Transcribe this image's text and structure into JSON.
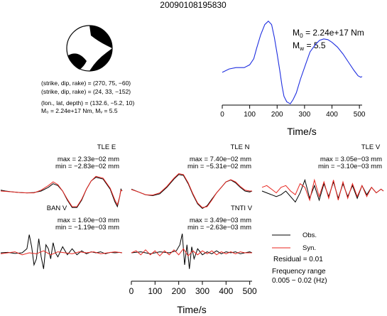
{
  "event": {
    "id": "20090108195830",
    "params": [
      "(strike, dip, rake) = (270, 75, −60)",
      "(strike, dip, rake) = (24, 33, −152)",
      "(lon., lat, depth) = (132.6, −5.2, 10)",
      "M₀ = 2.24e+17 Nm, Mᵥ = 5.5"
    ]
  },
  "stf": {
    "m0_label": "M",
    "m0_sub": "0",
    "m0_value": " = 2.24e+17 Nm",
    "mw_label": "M",
    "mw_sub": "w",
    "mw_value": " = 5.5",
    "xlabel": "Time/s",
    "xticks": [
      "0",
      "100",
      "200",
      "300",
      "400",
      "500"
    ]
  },
  "legend": {
    "obs": "Obs.",
    "syn": "Syn.",
    "residual": "Residual = 0.01",
    "freq_title": "Frequency range",
    "freq_range": "0.005 − 0.02 (Hz)"
  },
  "colors": {
    "observed": "#000000",
    "synthetic": "#e8251f",
    "stf": "#1f2fe0"
  },
  "chart_data": [
    {
      "type": "line",
      "panel": "source-time-function",
      "xlabel": "Time/s",
      "xlim": [
        0,
        510
      ],
      "ylim": [
        -0.25,
        1.05
      ],
      "series": [
        {
          "color": "#1f2fe0",
          "x": [
            0,
            25,
            50,
            80,
            100,
            115,
            125,
            140,
            155,
            168,
            180,
            190,
            200,
            210,
            218,
            225,
            235,
            248,
            258,
            270,
            285,
            305,
            320,
            340,
            355,
            370,
            385,
            400,
            420,
            440,
            460,
            480,
            495,
            505,
            510
          ],
          "y": [
            0.25,
            0.3,
            0.32,
            0.32,
            0.36,
            0.45,
            0.6,
            0.8,
            0.95,
            1.0,
            0.95,
            0.76,
            0.52,
            0.27,
            0.05,
            -0.1,
            -0.18,
            -0.21,
            -0.15,
            -0.05,
            0.15,
            0.38,
            0.55,
            0.66,
            0.72,
            0.74,
            0.73,
            0.69,
            0.62,
            0.52,
            0.4,
            0.28,
            0.2,
            0.18,
            0.19
          ]
        }
      ]
    },
    {
      "type": "line",
      "panel": "TLE E",
      "title": "TLE E",
      "max": "max = 2.33e−02 mm",
      "min": "min = −2.83e−02 mm",
      "xlim": [
        0,
        510
      ],
      "ylim": [
        -1.2,
        1.2
      ],
      "series": [
        {
          "name": "Obs.",
          "x": [
            0,
            20,
            50,
            80,
            110,
            140,
            170,
            200,
            220,
            240,
            260,
            280,
            300,
            320,
            340,
            360,
            380,
            400,
            430,
            460,
            480,
            490,
            500,
            505,
            510
          ],
          "y": [
            0.05,
            0.0,
            -0.05,
            -0.08,
            -0.1,
            -0.08,
            0.0,
            0.2,
            0.4,
            0.3,
            0.0,
            -0.5,
            -0.9,
            -0.9,
            -0.5,
            0.1,
            0.55,
            0.75,
            0.65,
            0.1,
            -0.6,
            -0.85,
            -0.3,
            0.1,
            0.0
          ]
        },
        {
          "name": "Syn.",
          "x": [
            0,
            20,
            50,
            80,
            110,
            140,
            170,
            200,
            220,
            240,
            260,
            280,
            300,
            320,
            340,
            360,
            380,
            400,
            430,
            460,
            480,
            490,
            500,
            505,
            510
          ],
          "y": [
            0.0,
            -0.02,
            -0.05,
            -0.08,
            -0.1,
            -0.1,
            0.05,
            0.3,
            0.5,
            0.35,
            0.0,
            -0.45,
            -0.85,
            -0.85,
            -0.45,
            0.1,
            0.55,
            0.8,
            0.7,
            0.15,
            -0.5,
            -0.75,
            -0.3,
            0.05,
            0.0
          ]
        }
      ]
    },
    {
      "type": "line",
      "panel": "TLE N",
      "title": "TLE N",
      "max": "max = 7.40e−02 mm",
      "min": "min = −5.31e−02 mm",
      "xlim": [
        0,
        510
      ],
      "ylim": [
        -1.2,
        1.2
      ],
      "series": [
        {
          "name": "Obs.",
          "x": [
            0,
            30,
            60,
            90,
            120,
            150,
            180,
            200,
            220,
            240,
            260,
            280,
            300,
            320,
            340,
            360,
            380,
            400,
            420,
            440,
            460,
            480,
            500,
            510
          ],
          "y": [
            0.1,
            -0.05,
            -0.2,
            -0.25,
            -0.15,
            0.2,
            0.65,
            0.9,
            0.85,
            0.4,
            -0.2,
            -0.7,
            -0.95,
            -0.8,
            -0.45,
            -0.1,
            0.2,
            0.5,
            0.6,
            0.45,
            0.2,
            0.0,
            -0.05,
            0.0
          ]
        },
        {
          "name": "Syn.",
          "x": [
            0,
            30,
            60,
            90,
            120,
            150,
            180,
            200,
            220,
            240,
            260,
            280,
            300,
            320,
            340,
            360,
            380,
            400,
            420,
            440,
            460,
            480,
            500,
            510
          ],
          "y": [
            0.08,
            -0.05,
            -0.2,
            -0.22,
            -0.1,
            0.25,
            0.7,
            0.95,
            0.9,
            0.45,
            -0.15,
            -0.65,
            -0.9,
            -0.85,
            -0.5,
            -0.1,
            0.2,
            0.5,
            0.62,
            0.5,
            0.25,
            0.05,
            0.0,
            0.0
          ]
        }
      ]
    },
    {
      "type": "line",
      "panel": "TLE V",
      "title": "TLE V",
      "max": "max = 3.05e−03 mm",
      "min": "min = −3.10e−03 mm",
      "xlim": [
        0,
        510
      ],
      "ylim": [
        -1.2,
        1.2
      ],
      "series": [
        {
          "name": "Obs.",
          "x": [
            0,
            20,
            40,
            60,
            80,
            100,
            120,
            140,
            160,
            180,
            200,
            220,
            240,
            260,
            280,
            300,
            320,
            340,
            360,
            380,
            400,
            420,
            440,
            460,
            480,
            500,
            510
          ],
          "y": [
            0.0,
            -0.1,
            -0.2,
            -0.3,
            -0.2,
            0.0,
            -0.3,
            -0.6,
            -0.1,
            0.6,
            -0.4,
            0.3,
            -0.5,
            0.4,
            -0.3,
            0.5,
            -0.4,
            0.4,
            -0.3,
            0.3,
            -0.4,
            0.3,
            -0.2,
            0.2,
            -0.1,
            0.1,
            0.0
          ]
        },
        {
          "name": "Syn.",
          "x": [
            0,
            20,
            40,
            60,
            80,
            100,
            120,
            140,
            160,
            180,
            200,
            220,
            240,
            260,
            280,
            300,
            320,
            340,
            360,
            380,
            400,
            420,
            440,
            460,
            480,
            500,
            510
          ],
          "y": [
            0.2,
            0.3,
            0.1,
            -0.1,
            0.2,
            0.3,
            0.0,
            -0.2,
            0.4,
            0.2,
            -0.5,
            0.6,
            -0.3,
            0.5,
            -0.4,
            0.6,
            -0.5,
            0.5,
            -0.4,
            0.4,
            -0.3,
            0.3,
            -0.3,
            0.2,
            -0.1,
            0.1,
            0.0
          ]
        }
      ]
    },
    {
      "type": "line",
      "panel": "BAN V",
      "title": "BAN V",
      "max": "max = 1.60e−03 mm",
      "min": "min = −1.19e−03 mm",
      "xlim": [
        0,
        510
      ],
      "ylim": [
        -1.2,
        1.2
      ],
      "series": [
        {
          "name": "Obs.",
          "x": [
            0,
            30,
            60,
            90,
            110,
            120,
            130,
            140,
            150,
            160,
            170,
            180,
            190,
            200,
            210,
            220,
            230,
            240,
            260,
            280,
            300,
            320,
            340,
            360,
            380,
            400,
            420,
            440,
            460,
            480,
            500,
            510
          ],
          "y": [
            0.0,
            0.02,
            -0.03,
            0.0,
            0.2,
            0.9,
            0.3,
            -0.6,
            -0.3,
            0.7,
            -0.2,
            -0.8,
            0.4,
            0.2,
            -0.3,
            0.5,
            0.0,
            -0.2,
            0.3,
            -0.1,
            0.2,
            -0.1,
            0.1,
            -0.05,
            0.05,
            0.0,
            0.05,
            -0.05,
            0.02,
            0.0,
            0.02,
            0.0
          ]
        },
        {
          "name": "Syn.",
          "x": [
            0,
            30,
            60,
            90,
            120,
            150,
            180,
            210,
            240,
            270,
            300,
            330,
            360,
            390,
            420,
            450,
            480,
            510
          ],
          "y": [
            -0.05,
            0.0,
            0.05,
            -0.1,
            0.0,
            -0.05,
            0.1,
            -0.1,
            0.05,
            0.0,
            -0.05,
            0.05,
            0.0,
            0.05,
            -0.05,
            0.0,
            0.05,
            0.0
          ]
        }
      ]
    },
    {
      "type": "line",
      "panel": "TNTI V",
      "title": "TNTI V",
      "max": "max = 3.49e−03 mm",
      "min": "min = −2.63e−03 mm",
      "xlabel": "Time/s",
      "xticks": [
        "0",
        "100",
        "200",
        "300",
        "400",
        "500"
      ],
      "xlim": [
        0,
        510
      ],
      "ylim": [
        -1.2,
        1.2
      ],
      "series": [
        {
          "name": "Obs.",
          "x": [
            0,
            40,
            80,
            120,
            160,
            190,
            205,
            215,
            225,
            235,
            245,
            255,
            265,
            280,
            300,
            320,
            340,
            360,
            380,
            400,
            420,
            440,
            460,
            480,
            500,
            510
          ],
          "y": [
            0.0,
            0.05,
            -0.05,
            0.05,
            0.0,
            0.1,
            0.4,
            0.95,
            -0.6,
            0.4,
            -0.8,
            0.3,
            -0.3,
            0.2,
            -0.1,
            0.05,
            -0.05,
            0.1,
            -0.05,
            0.05,
            0.0,
            0.05,
            -0.05,
            0.0,
            0.05,
            0.0
          ]
        },
        {
          "name": "Syn.",
          "x": [
            0,
            20,
            40,
            60,
            80,
            100,
            120,
            140,
            160,
            180,
            200,
            220,
            240,
            260,
            280,
            300,
            320,
            340,
            360,
            380,
            400,
            420,
            440,
            460,
            480,
            500,
            510
          ],
          "y": [
            0.0,
            0.1,
            -0.1,
            0.15,
            -0.1,
            0.1,
            -0.15,
            0.1,
            -0.1,
            0.15,
            -0.1,
            0.2,
            -0.15,
            0.1,
            -0.1,
            0.1,
            -0.05,
            0.1,
            -0.1,
            0.05,
            -0.05,
            0.05,
            -0.05,
            0.05,
            0.0,
            0.0,
            0.0
          ]
        }
      ]
    }
  ]
}
